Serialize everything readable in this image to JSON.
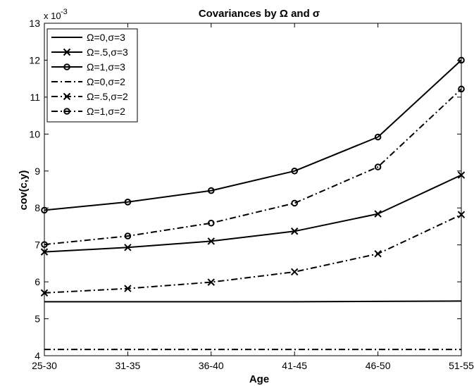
{
  "chart_data": {
    "type": "line",
    "title": "Covariances by Ω and σ",
    "xlabel": "Age",
    "ylabel": "cov(c,y)",
    "y_exponent_label": "x 10",
    "y_exponent_power": "-3",
    "categories": [
      "25-30",
      "31-35",
      "36-40",
      "41-45",
      "46-50",
      "51-55"
    ],
    "ylim": [
      4,
      13
    ],
    "yticks": [
      4,
      5,
      6,
      7,
      8,
      9,
      10,
      11,
      12,
      13
    ],
    "grid": false,
    "legend_position": "top-left",
    "series": [
      {
        "name": "Ω=0,σ=3",
        "values": [
          5.46,
          5.46,
          5.46,
          5.46,
          5.47,
          5.48
        ],
        "line_style": "solid",
        "marker": "none",
        "color": "#000000"
      },
      {
        "name": "Ω=.5,σ=3",
        "values": [
          6.81,
          6.93,
          7.1,
          7.37,
          7.84,
          8.89
        ],
        "line_style": "solid",
        "marker": "x",
        "color": "#000000"
      },
      {
        "name": "Ω=1,σ=3",
        "values": [
          7.94,
          8.16,
          8.47,
          9.0,
          9.92,
          12.0
        ],
        "line_style": "solid",
        "marker": "circle",
        "color": "#000000"
      },
      {
        "name": "Ω=0,σ=2",
        "values": [
          4.17,
          4.17,
          4.17,
          4.17,
          4.17,
          4.17
        ],
        "line_style": "dashdot",
        "marker": "none",
        "color": "#000000"
      },
      {
        "name": "Ω=.5,σ=2",
        "values": [
          5.7,
          5.82,
          5.99,
          6.27,
          6.76,
          7.82
        ],
        "line_style": "dashdot",
        "marker": "x",
        "color": "#000000"
      },
      {
        "name": "Ω=1,σ=2",
        "values": [
          7.01,
          7.24,
          7.59,
          8.13,
          9.11,
          11.22
        ],
        "line_style": "dashdot",
        "marker": "circle",
        "color": "#000000"
      }
    ]
  }
}
